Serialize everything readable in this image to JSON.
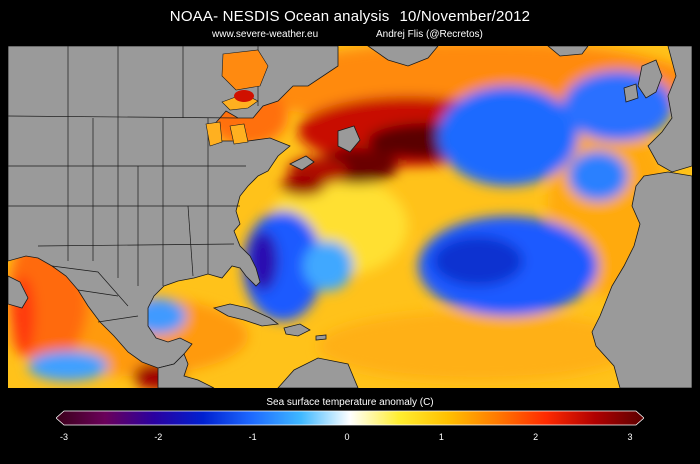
{
  "header": {
    "title": "NOAA- NESDIS Ocean analysis",
    "date": "10/November/2012",
    "website": "www.severe-weather.eu",
    "author": "Andrej Flis (@Recretos)"
  },
  "colorbar": {
    "label": "Sea surface temperature anomaly (C)",
    "ticks": [
      "-3",
      "-2",
      "-1",
      "0",
      "1",
      "2",
      "3"
    ],
    "min": -3,
    "max": 3,
    "colors": [
      "#3a0018",
      "#6a005a",
      "#2a00a0",
      "#0020d0",
      "#1e6aff",
      "#3fb8ff",
      "#ffffff",
      "#ffee30",
      "#ffc000",
      "#ff7a00",
      "#ff2a00",
      "#b00000",
      "#5a0000"
    ]
  },
  "map": {
    "region": "North Atlantic",
    "land_color": "#9a9a9a",
    "border_color": "#1a1a1a"
  }
}
